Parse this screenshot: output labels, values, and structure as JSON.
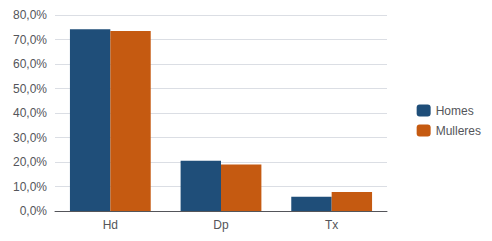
{
  "chart_data": {
    "type": "bar",
    "categories": [
      "Hd",
      "Dp",
      "Tx"
    ],
    "series": [
      {
        "name": "Homes",
        "color": "#1F4E79",
        "values": [
          74.2,
          20.5,
          5.8
        ]
      },
      {
        "name": "Mulleres",
        "color": "#C55A11",
        "values": [
          73.5,
          19.0,
          7.8
        ]
      }
    ],
    "ylim": [
      0,
      80
    ],
    "yticks": [
      {
        "value": 0,
        "label": "0,0%"
      },
      {
        "value": 10,
        "label": "10,0%"
      },
      {
        "value": 20,
        "label": "20,0%"
      },
      {
        "value": 30,
        "label": "30,0%"
      },
      {
        "value": 40,
        "label": "40,0%"
      },
      {
        "value": 50,
        "label": "50,0%"
      },
      {
        "value": 60,
        "label": "60,0%"
      },
      {
        "value": 70,
        "label": "70,0%"
      },
      {
        "value": 80,
        "label": "80,0%"
      }
    ],
    "grid": true,
    "legend": "right"
  }
}
